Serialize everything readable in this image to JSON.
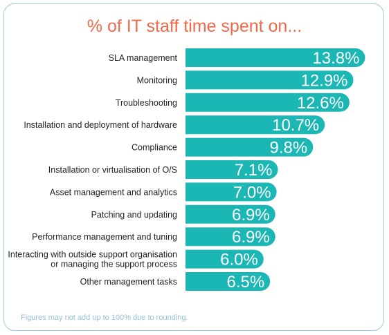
{
  "colors": {
    "bar": "#1bb7b5",
    "title": "#ef6a4c",
    "border": "#9dc8e0",
    "footnote": "#8fc1dc"
  },
  "title": "% of IT staff time spent on...",
  "footnote": "Figures may not add up to 100% due to rounding.",
  "chart_data": {
    "type": "bar",
    "orientation": "horizontal",
    "title": "% of IT staff time spent on...",
    "categories": [
      [
        "SLA management"
      ],
      [
        "Monitoring"
      ],
      [
        "Troubleshooting"
      ],
      [
        "Installation and deployment of hardware"
      ],
      [
        "Compliance"
      ],
      [
        "Installation or virtualisation of O/S"
      ],
      [
        "Asset management and analytics"
      ],
      [
        "Patching and updating"
      ],
      [
        "Performance management and tuning"
      ],
      [
        "Interacting with outside support organisation",
        "or managing the support process"
      ],
      [
        "Other management tasks"
      ]
    ],
    "values": [
      13.8,
      12.9,
      12.6,
      10.7,
      9.8,
      7.1,
      7.0,
      6.9,
      6.9,
      6.0,
      6.5
    ],
    "value_labels": [
      "13.8%",
      "12.9%",
      "12.6%",
      "10.7%",
      "9.8%",
      "7.1%",
      "7.0%",
      "6.9%",
      "6.9%",
      "6.0%",
      "6.5%"
    ],
    "xlabel": "",
    "ylabel": "",
    "grid": false,
    "legend": false
  }
}
